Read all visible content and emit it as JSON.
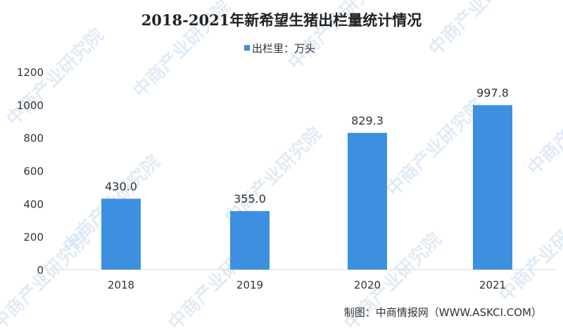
{
  "chart_data": {
    "type": "bar",
    "title": "2018-2021年新希望生猪出栏量统计情况",
    "legend": {
      "position": "top",
      "entries": [
        {
          "name": "出栏里：万头",
          "color": "#3d8fe0"
        }
      ]
    },
    "categories": [
      "2018",
      "2019",
      "2020",
      "2021"
    ],
    "series": [
      {
        "name": "出栏里：万头",
        "values": [
          430.0,
          355.0,
          829.3,
          997.8
        ]
      }
    ],
    "data_labels": [
      "430.0",
      "355.0",
      "829.3",
      "997.8"
    ],
    "ylim": [
      0,
      1200
    ],
    "yticks": [
      0,
      200,
      400,
      600,
      800,
      1000,
      1200
    ],
    "grid": false,
    "xlabel": "",
    "ylabel": "",
    "bar_color": "#3d8fe0"
  },
  "source": "制图：中商情报网（WWW.ASKCI.COM）",
  "watermark": "中商产业研究院"
}
